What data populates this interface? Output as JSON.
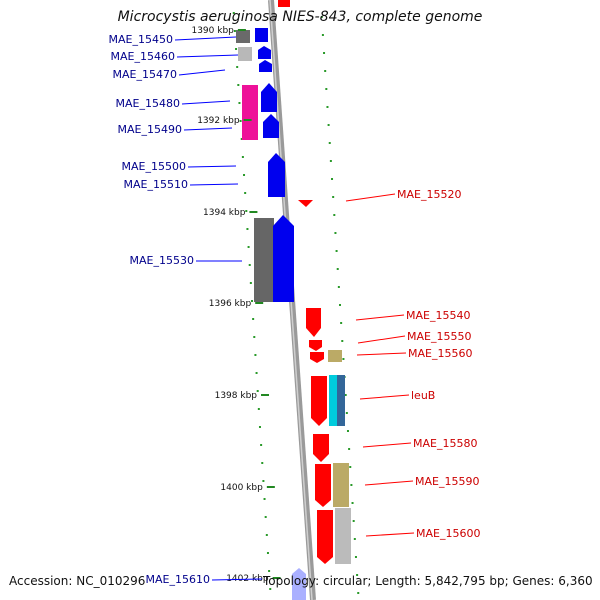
{
  "title": "Microcystis aeruginosa NIES-843, complete genome",
  "footer": {
    "accession": "Accession: NC_010296",
    "topology": "Topology: circular; Length: 5,842,795 bp; Genes: 6,360"
  },
  "colors": {
    "forward": "#0000ff",
    "reverse": "#ff0000",
    "backbone": "#999999",
    "tick": "#228822",
    "dot": "#2a9a2a"
  },
  "ticks": [
    {
      "label": "1390 kbp"
    },
    {
      "label": "1392 kbp"
    },
    {
      "label": "1394 kbp"
    },
    {
      "label": "1396 kbp"
    },
    {
      "label": "1398 kbp"
    },
    {
      "label": "1400 kbp"
    },
    {
      "label": "1402 kbp"
    }
  ],
  "left_genes": [
    {
      "label": "MAE_15450"
    },
    {
      "label": "MAE_15460"
    },
    {
      "label": "MAE_15470"
    },
    {
      "label": "MAE_15480"
    },
    {
      "label": "MAE_15490"
    },
    {
      "label": "MAE_15500"
    },
    {
      "label": "MAE_15510"
    },
    {
      "label": "MAE_15530"
    },
    {
      "label": "MAE_15610"
    }
  ],
  "right_genes": [
    {
      "label": "MAE_15520"
    },
    {
      "label": "MAE_15540"
    },
    {
      "label": "MAE_15550"
    },
    {
      "label": "MAE_15560"
    },
    {
      "label": "leuB"
    },
    {
      "label": "MAE_15580"
    },
    {
      "label": "MAE_15590"
    },
    {
      "label": "MAE_15600"
    }
  ]
}
